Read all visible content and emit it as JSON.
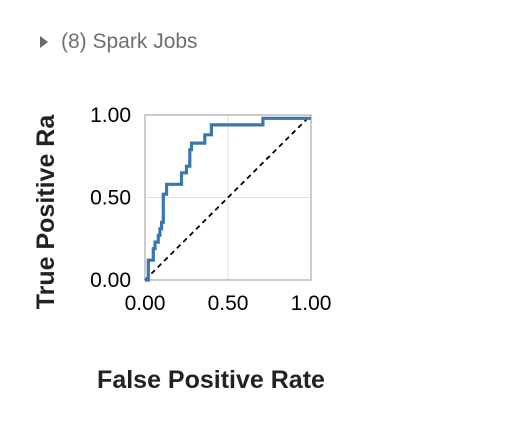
{
  "spark_jobs": {
    "label": "(8) Spark Jobs",
    "expand_icon": "caret-right-icon"
  },
  "chart_data": {
    "type": "line",
    "title": "",
    "xlabel": "False Positive Rate",
    "ylabel": "True Positive Ra",
    "xlim": [
      0,
      1
    ],
    "ylim": [
      0,
      1
    ],
    "x_ticks": [
      "0.00",
      "0.50",
      "1.00"
    ],
    "y_ticks": [
      "0.00",
      "0.50",
      "1.00"
    ],
    "grid": true,
    "colors": {
      "roc": "#3a76b0",
      "diagonal": "#000000",
      "grid": "#dddddd",
      "frame": "#bbbbbb"
    },
    "series": [
      {
        "role": "roc",
        "points": [
          [
            0.0,
            0.0
          ],
          [
            0.02,
            0.0
          ],
          [
            0.02,
            0.12
          ],
          [
            0.05,
            0.12
          ],
          [
            0.05,
            0.19
          ],
          [
            0.06,
            0.19
          ],
          [
            0.06,
            0.23
          ],
          [
            0.08,
            0.23
          ],
          [
            0.08,
            0.27
          ],
          [
            0.09,
            0.27
          ],
          [
            0.09,
            0.31
          ],
          [
            0.1,
            0.31
          ],
          [
            0.1,
            0.35
          ],
          [
            0.11,
            0.35
          ],
          [
            0.11,
            0.52
          ],
          [
            0.13,
            0.52
          ],
          [
            0.13,
            0.58
          ],
          [
            0.22,
            0.58
          ],
          [
            0.22,
            0.65
          ],
          [
            0.25,
            0.65
          ],
          [
            0.25,
            0.69
          ],
          [
            0.27,
            0.69
          ],
          [
            0.27,
            0.79
          ],
          [
            0.28,
            0.79
          ],
          [
            0.28,
            0.83
          ],
          [
            0.36,
            0.83
          ],
          [
            0.36,
            0.88
          ],
          [
            0.4,
            0.88
          ],
          [
            0.4,
            0.94
          ],
          [
            0.71,
            0.94
          ],
          [
            0.71,
            0.98
          ],
          [
            1.0,
            0.98
          ]
        ]
      },
      {
        "role": "chance",
        "points": [
          [
            0,
            0
          ],
          [
            1,
            1
          ]
        ]
      }
    ]
  }
}
